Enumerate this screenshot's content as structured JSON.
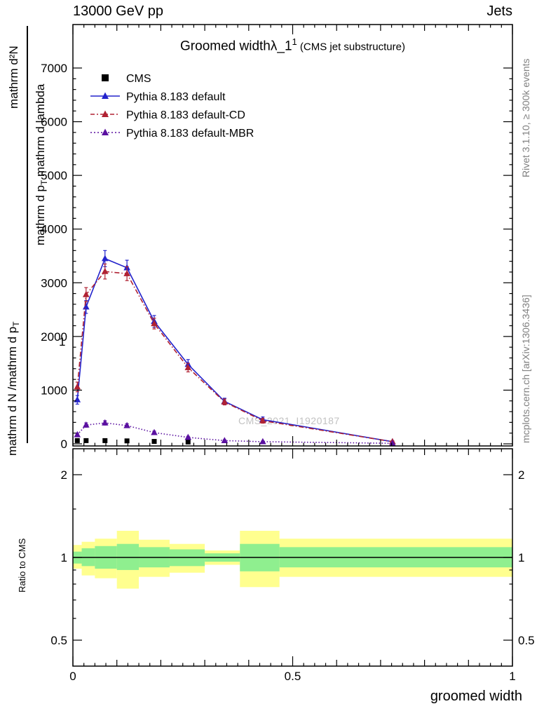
{
  "header": {
    "left": "13000 GeV pp",
    "right": "Jets"
  },
  "title": {
    "main": "Groomed width",
    "symbol": "λ_1",
    "sup": "1",
    "paren": " (CMS jet substructure)"
  },
  "legend": [
    {
      "label": "CMS",
      "marker": "square",
      "color": "#000000",
      "dash": ""
    },
    {
      "label": "Pythia 8.183 default",
      "marker": "triangle",
      "color": "#2323cc",
      "dash": ""
    },
    {
      "label": "Pythia 8.183 default-CD",
      "marker": "triangle",
      "color": "#b02233",
      "dash": "6 3 2 3"
    },
    {
      "label": "Pythia 8.183 default-MBR",
      "marker": "triangle",
      "color": "#5a10a0",
      "dash": "2 3"
    }
  ],
  "ylabel": {
    "num2": "mathrm d²N",
    "den2a": "mathrm d p",
    "den2sub": "T",
    "den2b": " mathrm d lambda",
    "num1": "1",
    "den1a": "mathrm d N /mathrm d p",
    "den1sub": "T"
  },
  "xlabel": "groomed width",
  "side_labels": {
    "rivet": "Rivet 3.1.10, ≥ 300k events",
    "mcplots": "mcplots.cern.ch [arXiv:1306.3436]",
    "watermark": "CMS_2021_I1920187",
    "ratio_ylabel": "Ratio to CMS"
  },
  "chart_data": {
    "type": "line",
    "title": "Groomed width λ_1^1 (CMS jet substructure)",
    "xlabel": "groomed width",
    "ylabel": "1/(dN/dp_T) d²N/(dp_T dλ)  [rendered garbled as plain 'mathrm' text]",
    "legend_position": "top-left",
    "grid": false,
    "x_range": [
      0,
      1
    ],
    "y_range": [
      0,
      7800
    ],
    "x_ticks_major": [
      0,
      0.5,
      1
    ],
    "x_tick_labels": [
      "0",
      "0.5",
      "1"
    ],
    "y_ticks_major": [
      0,
      1000,
      2000,
      3000,
      4000,
      5000,
      6000,
      7000
    ],
    "y_tick_labels": [
      "0",
      "1000",
      "2000",
      "3000",
      "4000",
      "5000",
      "6000",
      "7000"
    ],
    "x": [
      0.01,
      0.03,
      0.073,
      0.123,
      0.185,
      0.262,
      0.345,
      0.432,
      0.727
    ],
    "series": [
      {
        "id": "cms",
        "name": "CMS",
        "marker": "square",
        "color": "#000000",
        "line": "none",
        "x": [
          0.01,
          0.03,
          0.073,
          0.123,
          0.185,
          0.262
        ],
        "values": [
          60,
          60,
          60,
          55,
          45,
          35
        ],
        "errors": [
          0,
          0,
          0,
          0,
          0,
          0
        ]
      },
      {
        "id": "pythia-default",
        "name": "Pythia 8.183 default",
        "marker": "triangle",
        "color": "#2323cc",
        "line": "solid",
        "values": [
          820,
          2550,
          3450,
          3280,
          2280,
          1480,
          790,
          450,
          40
        ],
        "errors": [
          80,
          120,
          150,
          140,
          110,
          90,
          60,
          50,
          15
        ]
      },
      {
        "id": "pythia-default-cd",
        "name": "Pythia 8.183 default-CD",
        "marker": "triangle",
        "color": "#b02233",
        "line": "dashdot",
        "values": [
          1060,
          2780,
          3210,
          3170,
          2240,
          1420,
          780,
          430,
          40
        ],
        "errors": [
          90,
          130,
          140,
          130,
          100,
          80,
          55,
          45,
          15
        ]
      },
      {
        "id": "pythia-default-mbr",
        "name": "Pythia 8.183 default-MBR",
        "marker": "triangle",
        "color": "#5a10a0",
        "line": "dot",
        "values": [
          170,
          350,
          390,
          340,
          210,
          120,
          60,
          40,
          10
        ],
        "errors": [
          30,
          40,
          40,
          35,
          28,
          20,
          15,
          12,
          5
        ]
      }
    ],
    "ratio": {
      "ylabel": "Ratio to CMS",
      "y_scale": "log",
      "y_range": [
        0.4,
        2.48
      ],
      "y_ticks": [
        0.5,
        1,
        2
      ],
      "y_tick_labels": [
        "0.5",
        "1",
        "2"
      ],
      "y_minor_ticks": [
        0.6,
        0.7,
        0.8,
        0.9,
        1.5
      ],
      "reference_line": 1,
      "colors": {
        "yellow": "#ffff8f",
        "green": "#8fef8f"
      },
      "bins": [
        {
          "x0": 0.0,
          "x1": 0.02,
          "yellow": [
            0.91,
            1.11
          ],
          "green": [
            0.95,
            1.05
          ]
        },
        {
          "x0": 0.02,
          "x1": 0.05,
          "yellow": [
            0.86,
            1.14
          ],
          "green": [
            0.93,
            1.08
          ]
        },
        {
          "x0": 0.05,
          "x1": 0.1,
          "yellow": [
            0.84,
            1.17
          ],
          "green": [
            0.91,
            1.1
          ]
        },
        {
          "x0": 0.1,
          "x1": 0.15,
          "yellow": [
            0.77,
            1.25
          ],
          "green": [
            0.9,
            1.12
          ]
        },
        {
          "x0": 0.15,
          "x1": 0.22,
          "yellow": [
            0.85,
            1.16
          ],
          "green": [
            0.92,
            1.09
          ]
        },
        {
          "x0": 0.22,
          "x1": 0.3,
          "yellow": [
            0.88,
            1.12
          ],
          "green": [
            0.93,
            1.07
          ]
        },
        {
          "x0": 0.3,
          "x1": 0.38,
          "yellow": [
            0.94,
            1.06
          ],
          "green": [
            0.965,
            1.035
          ]
        },
        {
          "x0": 0.38,
          "x1": 0.47,
          "yellow": [
            0.78,
            1.25
          ],
          "green": [
            0.89,
            1.12
          ]
        },
        {
          "x0": 0.47,
          "x1": 1.0,
          "yellow": [
            0.85,
            1.17
          ],
          "green": [
            0.92,
            1.09
          ]
        }
      ]
    }
  }
}
